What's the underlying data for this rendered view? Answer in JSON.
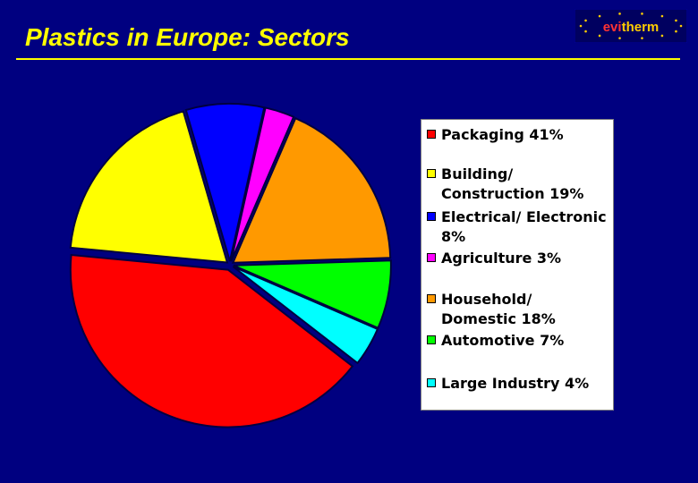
{
  "slide": {
    "title": "Plastics in Europe: Sectors",
    "logo": {
      "part1": "evi",
      "part2": "therm"
    }
  },
  "colors": {
    "background": "#000080",
    "title": "#ffff00",
    "logo_bg": "#000060",
    "logo_evi": "#ff3333",
    "logo_therm": "#ffcc00"
  },
  "chart_data": {
    "type": "pie",
    "title": "",
    "legend_position": "right",
    "slices": [
      {
        "label": "Packaging 41%",
        "value": 41,
        "color": "#ff0000"
      },
      {
        "label": "Building/ Construction 19%",
        "value": 19,
        "color": "#ffff00"
      },
      {
        "label": "Electrical/ Electronic 8%",
        "value": 8,
        "color": "#0000ff"
      },
      {
        "label": "Agriculture 3%",
        "value": 3,
        "color": "#ff00ff"
      },
      {
        "label": "Household/ Domestic 18%",
        "value": 18,
        "color": "#ff9900"
      },
      {
        "label": "Automotive 7%",
        "value": 7,
        "color": "#00ff00"
      },
      {
        "label": "Large Industry 4%",
        "value": 4,
        "color": "#00ffff"
      }
    ]
  }
}
